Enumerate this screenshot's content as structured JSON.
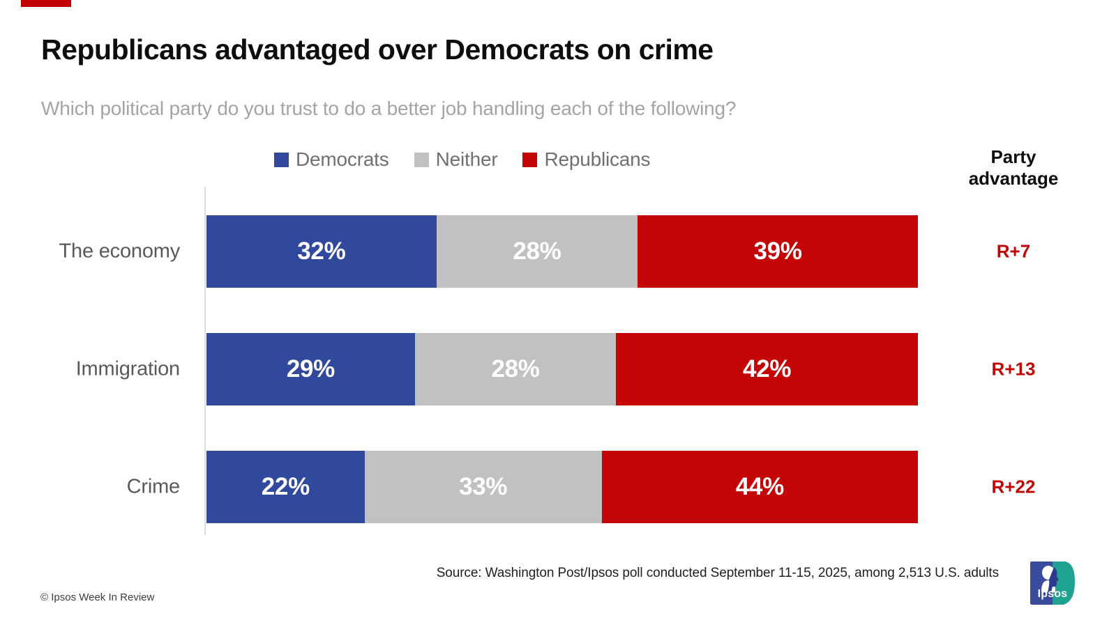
{
  "header": {
    "title": "Republicans advantaged over Democrats on crime",
    "subtitle": "Which political party do you trust to do a better job handling each of the following?"
  },
  "legend": [
    {
      "label": "Democrats",
      "color": "#31499d",
      "icon": "square-swatch"
    },
    {
      "label": "Neither",
      "color": "#c1c1c2",
      "icon": "square-swatch"
    },
    {
      "label": "Republicans",
      "color": "#c30505",
      "icon": "square-swatch"
    }
  ],
  "advantage_header": "Party advantage",
  "chart_data": {
    "type": "bar",
    "orientation": "horizontal",
    "stacked": true,
    "title": "Republicans advantaged over Democrats on crime",
    "categories": [
      "The economy",
      "Immigration",
      "Crime"
    ],
    "series": [
      {
        "name": "Democrats",
        "color": "#31499d",
        "values": [
          32,
          29,
          22
        ]
      },
      {
        "name": "Neither",
        "color": "#c1c1c2",
        "values": [
          28,
          28,
          33
        ]
      },
      {
        "name": "Republicans",
        "color": "#c30505",
        "values": [
          39,
          42,
          44
        ]
      }
    ],
    "value_suffix": "%",
    "party_advantage": [
      "R+7",
      "R+13",
      "R+22"
    ],
    "xlim": [
      0,
      100
    ],
    "grid": false,
    "legend_position": "top",
    "value_labels": "inside-white"
  },
  "footer": {
    "source": "Source: Washington Post/Ipsos poll conducted September 11-15, 2025, among 2,513 U.S. adults",
    "copyright": "© Ipsos Week In Review",
    "logo_text": "Ipsos"
  },
  "colors": {
    "democrat_blue": "#31499d",
    "neither_gray": "#c1c1c2",
    "republican_red": "#c30505",
    "advantage_text": "#c00505",
    "accent_bar": "#c00000",
    "subtitle_gray": "#a3a4a6",
    "label_gray": "#58595b",
    "axis_line": "#dcdcdc",
    "logo_blue": "#3a4b9e",
    "logo_teal": "#1fa390"
  }
}
